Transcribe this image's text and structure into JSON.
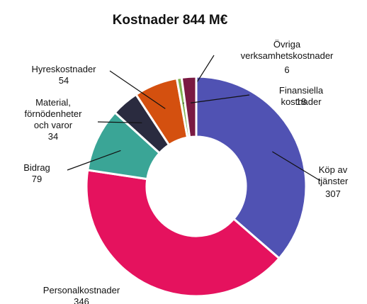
{
  "chart_data": {
    "type": "donut",
    "title": "Kostnader 844 M€",
    "categories": [
      "Köp av\ntjänster",
      "Personalkostnader",
      "Bidrag",
      "Material,\nförnödenheter\noch varor",
      "Hyreskostnader",
      "Övriga\nverksamhetskostnader",
      "Finansiella kostnader"
    ],
    "values": [
      307,
      346,
      79,
      34,
      54,
      6,
      18
    ],
    "colors": [
      "#5052b3",
      "#e5125e",
      "#3aa596",
      "#2a2b3f",
      "#d4500f",
      "#7fb24f",
      "#7a1a42"
    ]
  }
}
